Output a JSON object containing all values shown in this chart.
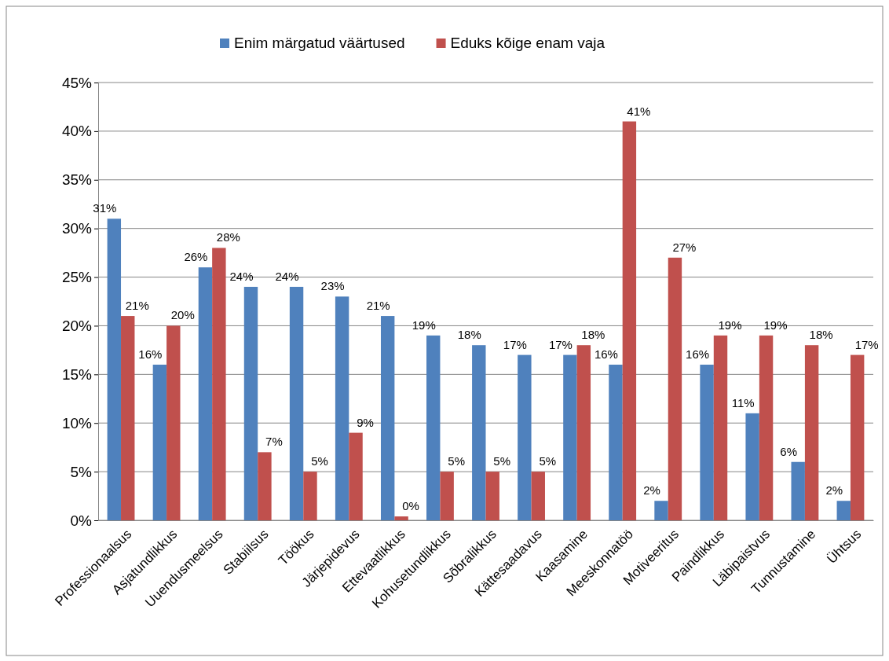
{
  "chart_data": {
    "type": "bar",
    "categories": [
      "Professionaalsus",
      "Asjatundlikkus",
      "Uuendusmeelsus",
      "Stabiilsus",
      "Töökus",
      "Järjepidevus",
      "Ettevaatlikkus",
      "Kohusetundlikkus",
      "Sõbralikkus",
      "Kättesaadavus",
      "Kaasamine",
      "Meeskonnatöö",
      "Motiveeritus",
      "Paindlikkus",
      "Läbipaistvus",
      "Tunnustamine",
      "Ühtsus"
    ],
    "series": [
      {
        "name": "Enim märgatud väärtused",
        "color": "#4f81bd",
        "values": [
          31,
          16,
          26,
          24,
          24,
          23,
          21,
          19,
          18,
          17,
          17,
          16,
          2,
          16,
          11,
          6,
          2
        ],
        "value_labels": [
          "31%",
          "16%",
          "26%",
          "24%",
          "24%",
          "23%",
          "21%",
          "19%",
          "18%",
          "17%",
          "17%",
          "16%",
          "2%",
          "16%",
          "11%",
          "6%",
          "2%"
        ]
      },
      {
        "name": "Eduks kõige enam vaja",
        "color": "#c0504d",
        "values": [
          21,
          20,
          28,
          7,
          5,
          9,
          0.4,
          5,
          5,
          5,
          18,
          41,
          27,
          19,
          19,
          18,
          17
        ],
        "value_labels": [
          "21%",
          "20%",
          "28%",
          "7%",
          "5%",
          "9%",
          "0%",
          "5%",
          "5%",
          "5%",
          "18%",
          "41%",
          "27%",
          "19%",
          "19%",
          "18%",
          "17%"
        ]
      }
    ],
    "ylim": [
      0,
      45
    ],
    "yticks": [
      {
        "value": 0,
        "label": "0%"
      },
      {
        "value": 5,
        "label": "5%"
      },
      {
        "value": 10,
        "label": "10%"
      },
      {
        "value": 15,
        "label": "15%"
      },
      {
        "value": 20,
        "label": "20%"
      },
      {
        "value": 25,
        "label": "25%"
      },
      {
        "value": 30,
        "label": "30%"
      },
      {
        "value": 35,
        "label": "35%"
      },
      {
        "value": 40,
        "label": "40%"
      },
      {
        "value": 45,
        "label": "45%"
      }
    ],
    "grid": "y",
    "legend": "top"
  }
}
